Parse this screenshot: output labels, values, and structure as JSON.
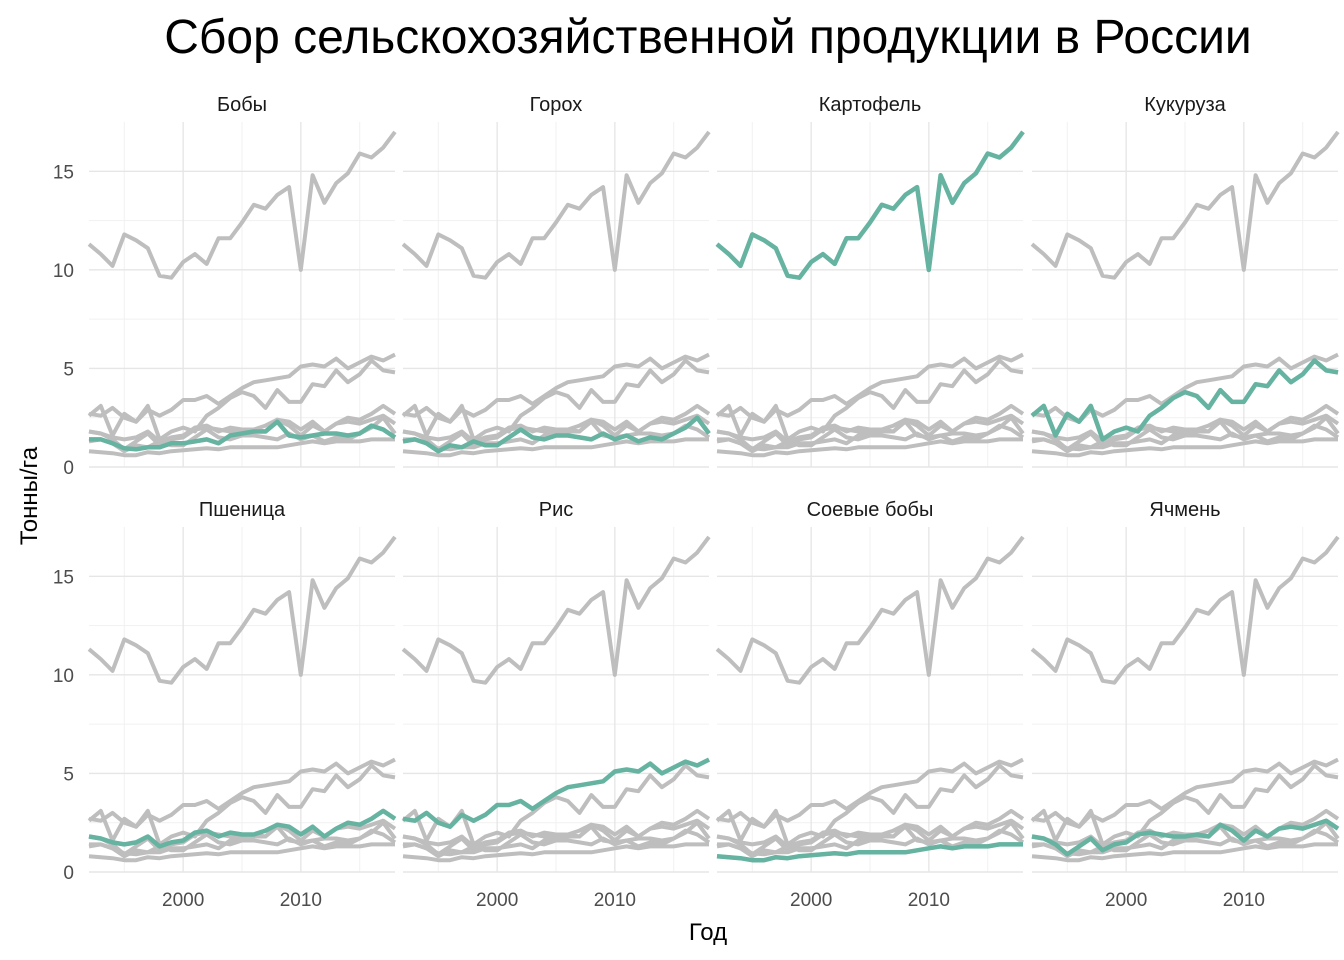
{
  "chart_data": {
    "type": "line",
    "title": "Сбор сельскохозяйственной продукции в России",
    "xlabel": "Год",
    "ylabel": "Тонны/га",
    "x_range": [
      1992,
      2018
    ],
    "ylim": [
      0,
      17.5
    ],
    "x_ticks": [
      2000,
      2010
    ],
    "y_ticks": [
      0,
      5,
      10,
      15
    ],
    "grid": true,
    "highlight_color": "#66b3a1",
    "background_color": "#bebebe",
    "years": [
      1992,
      1993,
      1994,
      1995,
      1996,
      1997,
      1998,
      1999,
      2000,
      2001,
      2002,
      2003,
      2004,
      2005,
      2006,
      2007,
      2008,
      2009,
      2010,
      2011,
      2012,
      2013,
      2014,
      2015,
      2016,
      2017,
      2018
    ],
    "panels": [
      "Бобы",
      "Горох",
      "Картофель",
      "Кукуруза",
      "Пшеница",
      "Рис",
      "Соевые бобы",
      "Ячмень"
    ],
    "series": [
      {
        "name": "Бобы",
        "values": [
          1.4,
          1.4,
          1.2,
          0.95,
          0.9,
          1.0,
          1.0,
          1.2,
          1.2,
          1.3,
          1.4,
          1.2,
          1.6,
          1.7,
          1.8,
          1.8,
          2.3,
          1.6,
          1.5,
          1.6,
          1.7,
          1.7,
          1.6,
          1.7,
          2.1,
          1.9,
          1.5
        ]
      },
      {
        "name": "Горох",
        "values": [
          1.3,
          1.4,
          1.2,
          0.8,
          1.1,
          1.0,
          1.3,
          1.1,
          1.1,
          1.5,
          1.9,
          1.5,
          1.4,
          1.6,
          1.6,
          1.5,
          1.4,
          1.7,
          1.4,
          1.6,
          1.3,
          1.5,
          1.4,
          1.7,
          2.0,
          2.5,
          1.7
        ]
      },
      {
        "name": "Картофель",
        "values": [
          11.3,
          10.8,
          10.2,
          11.8,
          11.5,
          11.1,
          9.7,
          9.6,
          10.4,
          10.8,
          10.3,
          11.6,
          11.6,
          12.4,
          13.3,
          13.1,
          13.8,
          14.2,
          10.0,
          14.8,
          13.4,
          14.4,
          14.9,
          15.9,
          15.7,
          16.2,
          17.0
        ]
      },
      {
        "name": "Кукуруза",
        "values": [
          2.6,
          3.1,
          1.6,
          2.7,
          2.3,
          3.1,
          1.4,
          1.8,
          2.0,
          1.8,
          2.6,
          3.0,
          3.5,
          3.8,
          3.6,
          3.0,
          3.9,
          3.3,
          3.3,
          4.2,
          4.1,
          4.9,
          4.3,
          4.7,
          5.4,
          4.9,
          4.8
        ]
      },
      {
        "name": "Пшеница",
        "values": [
          1.8,
          1.7,
          1.5,
          1.4,
          1.5,
          1.8,
          1.3,
          1.5,
          1.6,
          2.0,
          2.1,
          1.8,
          2.0,
          1.9,
          1.9,
          2.1,
          2.4,
          2.3,
          1.9,
          2.3,
          1.8,
          2.2,
          2.5,
          2.4,
          2.7,
          3.1,
          2.7
        ]
      },
      {
        "name": "Рис",
        "values": [
          2.7,
          2.6,
          3.0,
          2.5,
          2.3,
          2.9,
          2.6,
          2.9,
          3.4,
          3.4,
          3.6,
          3.2,
          3.6,
          4.0,
          4.3,
          4.4,
          4.5,
          4.6,
          5.1,
          5.2,
          5.1,
          5.5,
          5.0,
          5.3,
          5.6,
          5.4,
          5.7
        ]
      },
      {
        "name": "Соевые бобы",
        "values": [
          0.8,
          0.75,
          0.7,
          0.6,
          0.6,
          0.75,
          0.7,
          0.8,
          0.85,
          0.9,
          0.95,
          0.9,
          1.0,
          1.0,
          1.0,
          1.0,
          1.0,
          1.1,
          1.2,
          1.3,
          1.2,
          1.3,
          1.3,
          1.3,
          1.4,
          1.4,
          1.4
        ]
      },
      {
        "name": "Ячмень",
        "values": [
          1.8,
          1.7,
          1.4,
          0.9,
          1.3,
          1.7,
          1.1,
          1.4,
          1.5,
          1.9,
          2.0,
          1.9,
          1.8,
          1.8,
          1.9,
          1.8,
          2.4,
          2.1,
          1.6,
          2.1,
          1.8,
          2.2,
          2.3,
          2.2,
          2.4,
          2.6,
          2.2
        ]
      }
    ]
  }
}
